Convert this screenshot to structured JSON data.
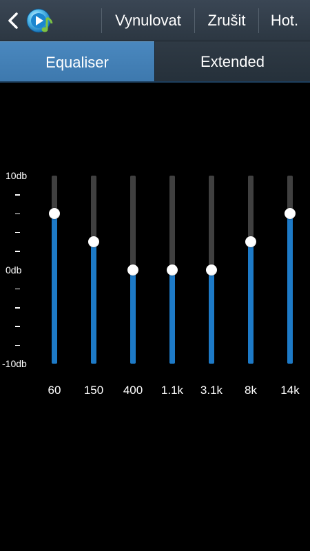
{
  "action_bar": {
    "back_icon": "chevron-left-icon",
    "app_icon": "music-player-icon",
    "actions": [
      {
        "label": "Vynulovat"
      },
      {
        "label": "Zrušit"
      },
      {
        "label": "Hot."
      }
    ]
  },
  "tabs": [
    {
      "label": "Equaliser",
      "selected": true
    },
    {
      "label": "Extended",
      "selected": false
    }
  ],
  "equaliser": {
    "scale": {
      "max_label": "10db",
      "mid_label": "0db",
      "min_label": "-10db",
      "min": -10,
      "max": 10,
      "tick_label": "–"
    },
    "bands": [
      {
        "frequency": "60",
        "value": 6
      },
      {
        "frequency": "150",
        "value": 3
      },
      {
        "frequency": "400",
        "value": 0
      },
      {
        "frequency": "1.1k",
        "value": 0
      },
      {
        "frequency": "3.1k",
        "value": 0
      },
      {
        "frequency": "8k",
        "value": 3
      },
      {
        "frequency": "14k",
        "value": 6
      }
    ]
  },
  "colors": {
    "accent": "#1d7ac7",
    "selected_tab": "#4a88bf",
    "track": "#404040",
    "background": "#000000"
  }
}
